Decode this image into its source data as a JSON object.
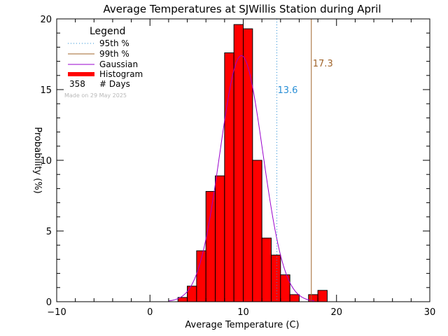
{
  "chart_data": {
    "type": "bar",
    "title": "Average Temperatures at SJWillis Station during April",
    "xlabel": "Average Temperature (C)",
    "ylabel": "Probability (%)",
    "xlim": [
      -10,
      30
    ],
    "ylim": [
      0,
      20
    ],
    "x_ticks": [
      -10,
      0,
      10,
      20,
      30
    ],
    "x_tick_labels": [
      "−10",
      "0",
      "10",
      "20",
      "30"
    ],
    "y_ticks": [
      0,
      5,
      10,
      15,
      20
    ],
    "y_tick_labels": [
      "0",
      "5",
      "10",
      "15",
      "20"
    ],
    "bin_width": 1,
    "bins": [
      {
        "x0": 3,
        "x1": 4,
        "value": 0.3
      },
      {
        "x0": 4,
        "x1": 5,
        "value": 1.1
      },
      {
        "x0": 5,
        "x1": 6,
        "value": 3.6
      },
      {
        "x0": 6,
        "x1": 7,
        "value": 7.8
      },
      {
        "x0": 7,
        "x1": 8,
        "value": 8.9
      },
      {
        "x0": 8,
        "x1": 9,
        "value": 17.6
      },
      {
        "x0": 9,
        "x1": 10,
        "value": 19.6
      },
      {
        "x0": 10,
        "x1": 11,
        "value": 19.3
      },
      {
        "x0": 11,
        "x1": 12,
        "value": 10.0
      },
      {
        "x0": 12,
        "x1": 13,
        "value": 4.5
      },
      {
        "x0": 13,
        "x1": 14,
        "value": 3.3
      },
      {
        "x0": 14,
        "x1": 15,
        "value": 1.9
      },
      {
        "x0": 15,
        "x1": 16,
        "value": 0.5
      },
      {
        "x0": 17,
        "x1": 18,
        "value": 0.5
      },
      {
        "x0": 18,
        "x1": 19,
        "value": 0.8
      }
    ],
    "gaussian": {
      "mean": 9.8,
      "sigma": 2.3,
      "peak": 17.4
    },
    "percentile_95": {
      "value": 13.6,
      "label": "13.6"
    },
    "percentile_99": {
      "value": 17.3,
      "label": "17.3"
    },
    "legend": {
      "title": "Legend",
      "items": [
        "95th %",
        "99th %",
        "Gaussian",
        "Histogram"
      ],
      "count": "358",
      "count_label": "# Days",
      "position": "top-left"
    },
    "made_on": "Made on 29 May 2025",
    "colors": {
      "histogram": "#ff0000",
      "gaussian": "#9900cc",
      "p95": "#2a8fd6",
      "p99": "#a0642a"
    }
  }
}
